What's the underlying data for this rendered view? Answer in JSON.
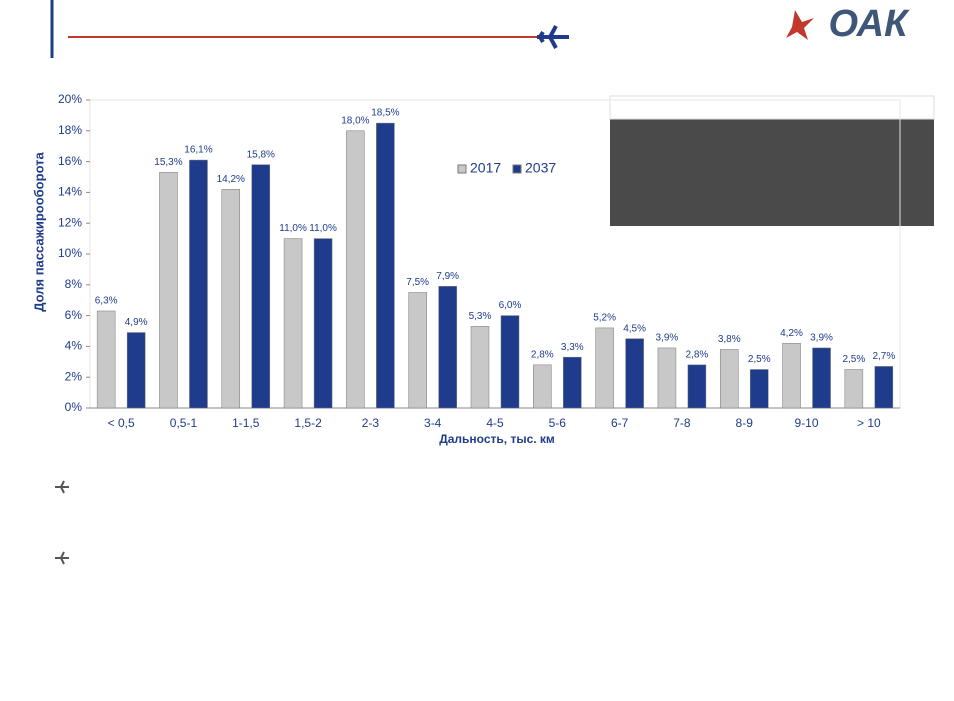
{
  "logo": "ОАК",
  "chart_data": {
    "type": "bar",
    "y_label": "Доля пассажирооборота",
    "x_label": "Дальность, тыс. км",
    "categories": [
      "< 0,5",
      "0,5-1",
      "1-1,5",
      "1,5-2",
      "2-3",
      "3-4",
      "4-5",
      "5-6",
      "6-7",
      "7-8",
      "8-9",
      "9-10",
      "> 10"
    ],
    "series": [
      {
        "name": "2017",
        "color": "#c8c8c8",
        "values": [
          6.3,
          15.3,
          14.2,
          11.0,
          18.0,
          7.5,
          5.3,
          2.8,
          5.2,
          3.9,
          3.8,
          4.2,
          2.5
        ],
        "value_labels": [
          "6,3%",
          "15,3%",
          "14,2%",
          "11,0%",
          "18,0%",
          "7,5%",
          "5,3%",
          "2,8%",
          "5,2%",
          "3,9%",
          "3,8%",
          "4,2%",
          "2,5%"
        ]
      },
      {
        "name": "2037",
        "color": "#1f3c8c",
        "values": [
          4.9,
          16.1,
          15.8,
          11.0,
          18.5,
          7.9,
          6.0,
          3.3,
          4.5,
          2.8,
          2.5,
          3.9,
          2.7
        ],
        "value_labels": [
          "4,9%",
          "16,1%",
          "15,8%",
          "11,0%",
          "18,5%",
          "7,9%",
          "6,0%",
          "3,3%",
          "4,5%",
          "2,8%",
          "2,5%",
          "3,9%",
          "2,7%"
        ]
      }
    ],
    "ylim": [
      0,
      20
    ],
    "yticks": [
      {
        "value": 0,
        "label": "0%"
      },
      {
        "value": 2,
        "label": "2%"
      },
      {
        "value": 4,
        "label": "4%"
      },
      {
        "value": 6,
        "label": "6%"
      },
      {
        "value": 8,
        "label": "8%"
      },
      {
        "value": 10,
        "label": "10%"
      },
      {
        "value": 12,
        "label": "12%"
      },
      {
        "value": 14,
        "label": "14%"
      },
      {
        "value": 16,
        "label": "16%"
      },
      {
        "value": 18,
        "label": "18%"
      },
      {
        "value": 20,
        "label": "20%"
      }
    ],
    "legend": "top"
  }
}
